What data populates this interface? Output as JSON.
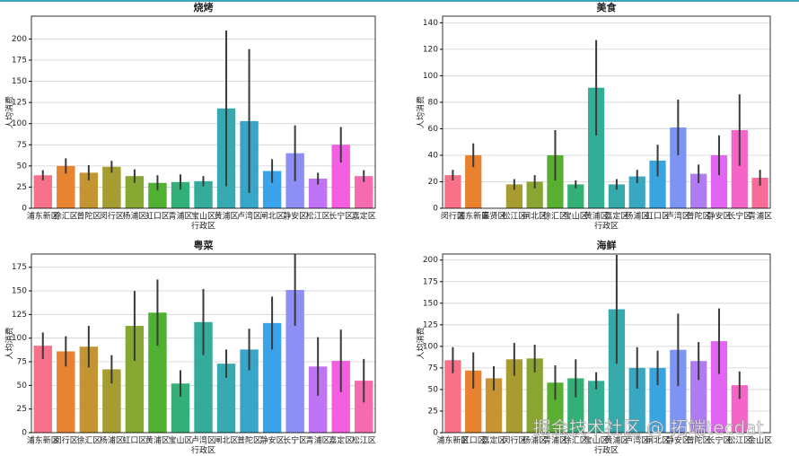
{
  "watermark": "掘金技术社区 @ 拓端tecdat",
  "chart_data": [
    {
      "type": "bar",
      "title": "烧烤",
      "xlabel": "行政区",
      "ylabel": "人均消费",
      "categories": [
        "浦东新区",
        "徐汇区",
        "普陀区",
        "闵行区",
        "杨浦区",
        "虹口区",
        "青浦区",
        "宝山区",
        "黄浦区",
        "卢湾区",
        "闸北区",
        "静安区",
        "松江区",
        "长宁区",
        "嘉定区"
      ],
      "values": [
        39,
        50,
        42,
        49,
        38,
        30,
        31,
        32,
        118,
        103,
        44,
        65,
        35,
        75,
        38
      ],
      "errors": [
        6,
        9,
        9,
        7,
        8,
        9,
        9,
        6,
        92,
        85,
        14,
        33,
        7,
        21,
        7
      ],
      "colors": [
        "#f77189",
        "#e78432",
        "#c39532",
        "#a59d31",
        "#86a731",
        "#4fb031",
        "#33b07a",
        "#35ac9b",
        "#36a9b1",
        "#38a6c8",
        "#3ba3ec",
        "#8e8ff4",
        "#c073f4",
        "#f45fe1",
        "#f66bad"
      ],
      "ylim": [
        0,
        227
      ],
      "yticks": [
        0,
        25,
        50,
        75,
        100,
        125,
        150,
        175,
        200
      ],
      "grid": true
    },
    {
      "type": "bar",
      "title": "美食",
      "xlabel": "行政区",
      "ylabel": "人均消费",
      "categories": [
        "闵行区",
        "浦东新区",
        "奉贤区",
        "松江区",
        "闸北区",
        "徐汇区",
        "宝山区",
        "黄浦区",
        "嘉定区",
        "杨浦区",
        "虹口区",
        "卢湾区",
        "普陀区",
        "静安区",
        "长宁区",
        "青浦区"
      ],
      "values": [
        25,
        40,
        null,
        18,
        20,
        40,
        18,
        91,
        18,
        24,
        36,
        61,
        26,
        40,
        59,
        23
      ],
      "errors": [
        4,
        9,
        null,
        4,
        5,
        19,
        3,
        36,
        4,
        5,
        12,
        21,
        7,
        15,
        27,
        6
      ],
      "colors": [
        "#f77189",
        "#e9812f",
        "#c89433",
        "#a89c31",
        "#8aa531",
        "#58af31",
        "#33b075",
        "#34ad96",
        "#36aaab",
        "#37a7c2",
        "#3aa4de",
        "#7c95f4",
        "#b07cf4",
        "#e265f4",
        "#f565c7",
        "#f66b9a"
      ],
      "ylim": [
        0,
        145
      ],
      "yticks": [
        0,
        20,
        40,
        60,
        80,
        100,
        120,
        140
      ],
      "grid": true
    },
    {
      "type": "bar",
      "title": "粤菜",
      "xlabel": "行政区",
      "ylabel": "人均消费",
      "categories": [
        "浦东新区",
        "闵行区",
        "徐汇区",
        "杨浦区",
        "虹口区",
        "黄浦区",
        "宝山区",
        "卢湾区",
        "闸北区",
        "普陀区",
        "静安区",
        "长宁区",
        "青浦区",
        "嘉定区",
        "松江区"
      ],
      "values": [
        92,
        86,
        91,
        67,
        113,
        127,
        52,
        117,
        73,
        88,
        116,
        151,
        70,
        76,
        55
      ],
      "errors": [
        14,
        16,
        22,
        15,
        37,
        35,
        14,
        35,
        15,
        22,
        28,
        38,
        31,
        33,
        23
      ],
      "colors": [
        "#f77189",
        "#e78432",
        "#c39532",
        "#a59d31",
        "#86a731",
        "#4fb031",
        "#33b07a",
        "#35ac9b",
        "#36a9b1",
        "#38a6c8",
        "#3ba3ec",
        "#8e8ff4",
        "#c073f4",
        "#f45fe1",
        "#f66bad"
      ],
      "ylim": [
        0,
        189
      ],
      "yticks": [
        0,
        25,
        50,
        75,
        100,
        125,
        150,
        175
      ],
      "grid": true
    },
    {
      "type": "bar",
      "title": "海鲜",
      "xlabel": "行政区",
      "ylabel": "人均消费",
      "categories": [
        "浦东新区",
        "虹口区",
        "嘉定区",
        "闵行区",
        "杨浦区",
        "青浦区",
        "徐汇区",
        "宝山区",
        "黄浦区",
        "卢湾区",
        "闸北区",
        "静安区",
        "普陀区",
        "长宁区",
        "松江区",
        "金山区"
      ],
      "values": [
        84,
        72,
        63,
        85,
        86,
        58,
        63,
        60,
        143,
        75,
        75,
        96,
        83,
        106,
        55,
        null
      ],
      "errors": [
        15,
        21,
        14,
        19,
        16,
        20,
        22,
        10,
        63,
        24,
        20,
        42,
        22,
        38,
        16,
        null
      ],
      "colors": [
        "#f77189",
        "#e9812f",
        "#c89433",
        "#a89c31",
        "#8aa531",
        "#58af31",
        "#33b075",
        "#34ad96",
        "#36aaab",
        "#37a7c2",
        "#3aa4de",
        "#7c95f4",
        "#b07cf4",
        "#e265f4",
        "#f565c7",
        "#f66b9a"
      ],
      "ylim": [
        0,
        207
      ],
      "yticks": [
        0,
        25,
        50,
        75,
        100,
        125,
        150,
        175,
        200
      ],
      "grid": true
    }
  ]
}
